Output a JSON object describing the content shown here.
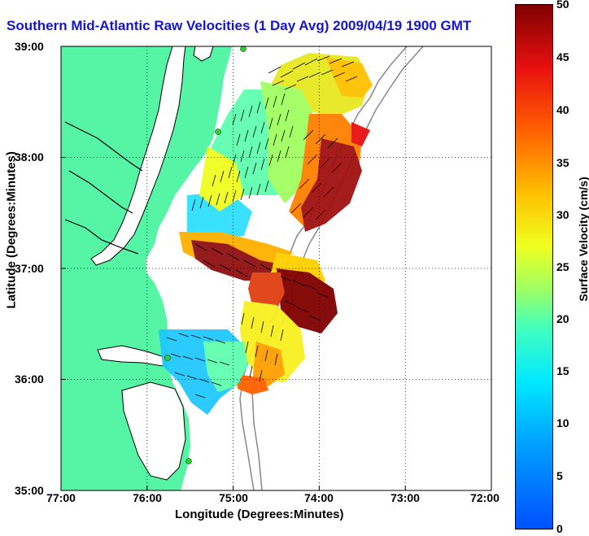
{
  "title": "Southern Mid-Atlantic Raw Velocities (1 Day Avg) 2009/04/19 1900 GMT",
  "axes": {
    "xlabel": "Longitude (Degrees:Minutes)",
    "ylabel": "Latitude (Degrees:Minutes)",
    "xticks": [
      "77:00",
      "76:00",
      "75:00",
      "74:00",
      "73:00",
      "72:00"
    ],
    "yticks": [
      "39:00",
      "38:00",
      "37:00",
      "36:00",
      "35:00"
    ]
  },
  "colorbar": {
    "label": "Surface Velocity (cm/s)",
    "ticks": [
      "50",
      "45",
      "40",
      "35",
      "30",
      "25",
      "20",
      "15",
      "10",
      "5",
      "0"
    ],
    "min": 0,
    "max": 50,
    "colors": [
      "#0050ff",
      "#00e8ff",
      "#a0ff60",
      "#f0ff20",
      "#ff6000",
      "#800000"
    ]
  },
  "map": {
    "land_color": "#55f5a5",
    "ocean_color": "#ffffff",
    "grid_style": "dotted",
    "extent": {
      "lon": [
        "77:00",
        "72:00"
      ],
      "lat": [
        "35:00",
        "39:00"
      ]
    }
  }
}
